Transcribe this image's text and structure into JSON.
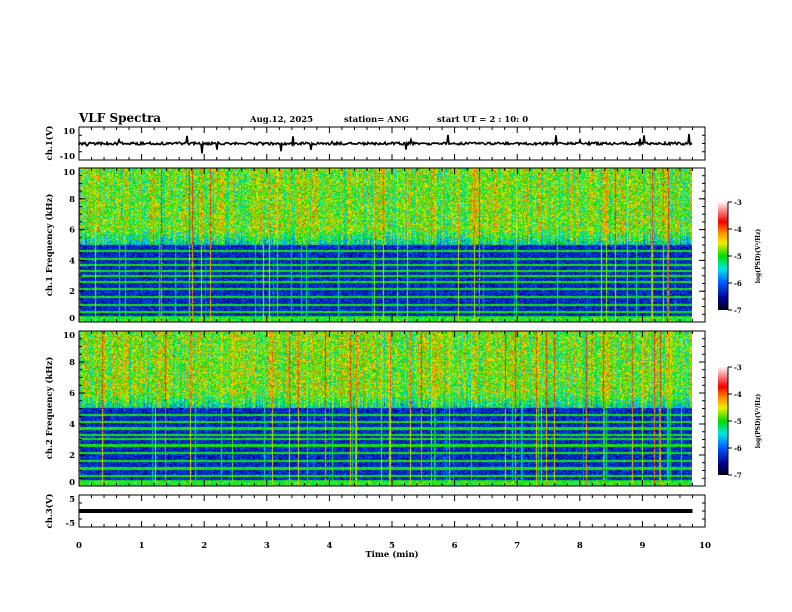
{
  "header": {
    "title": "VLF Spectra",
    "date": "Aug.12, 2025",
    "station": "station= ANG",
    "start": "start UT =  2 : 10: 0"
  },
  "chart_data": [
    {
      "type": "line",
      "name": "ch1-waveform",
      "ylabel": "ch.1(V)",
      "ylim": [
        -10,
        10
      ],
      "yticks": [
        "10",
        "-10"
      ],
      "baseline": 0,
      "x_extent_min": 9.8
    },
    {
      "type": "heatmap",
      "name": "ch1-spectrogram",
      "ylabel": "ch.1 Frequency (kHz)",
      "ylim": [
        0,
        10
      ],
      "yticks": [
        "0",
        "2",
        "4",
        "6",
        "8",
        "10"
      ],
      "colorbar": {
        "label": "log(PSD)(V²/Hz)",
        "range": [
          -7,
          -3
        ],
        "ticks": [
          "-3",
          "-4",
          "-5",
          "-6",
          "-7"
        ]
      },
      "seed": 7
    },
    {
      "type": "heatmap",
      "name": "ch2-spectrogram",
      "ylabel": "ch.2 Frequency (kHz)",
      "ylim": [
        0,
        10
      ],
      "yticks": [
        "0",
        "2",
        "4",
        "6",
        "8",
        "10"
      ],
      "colorbar": {
        "label": "log(PSD)(V²/Hz)",
        "range": [
          -7,
          -3
        ],
        "ticks": [
          "-3",
          "-4",
          "-5",
          "-6",
          "-7"
        ]
      },
      "seed": 13
    },
    {
      "type": "line",
      "name": "ch3-waveform",
      "ylabel": "ch.3(V)",
      "ylim": [
        -5,
        5
      ],
      "yticks": [
        "5",
        "-5"
      ],
      "value": 0
    }
  ],
  "xaxis": {
    "label": "Time (min)",
    "range": [
      0,
      10
    ],
    "ticks": [
      "0",
      "1",
      "2",
      "3",
      "4",
      "5",
      "6",
      "7",
      "8",
      "9",
      "10"
    ]
  }
}
